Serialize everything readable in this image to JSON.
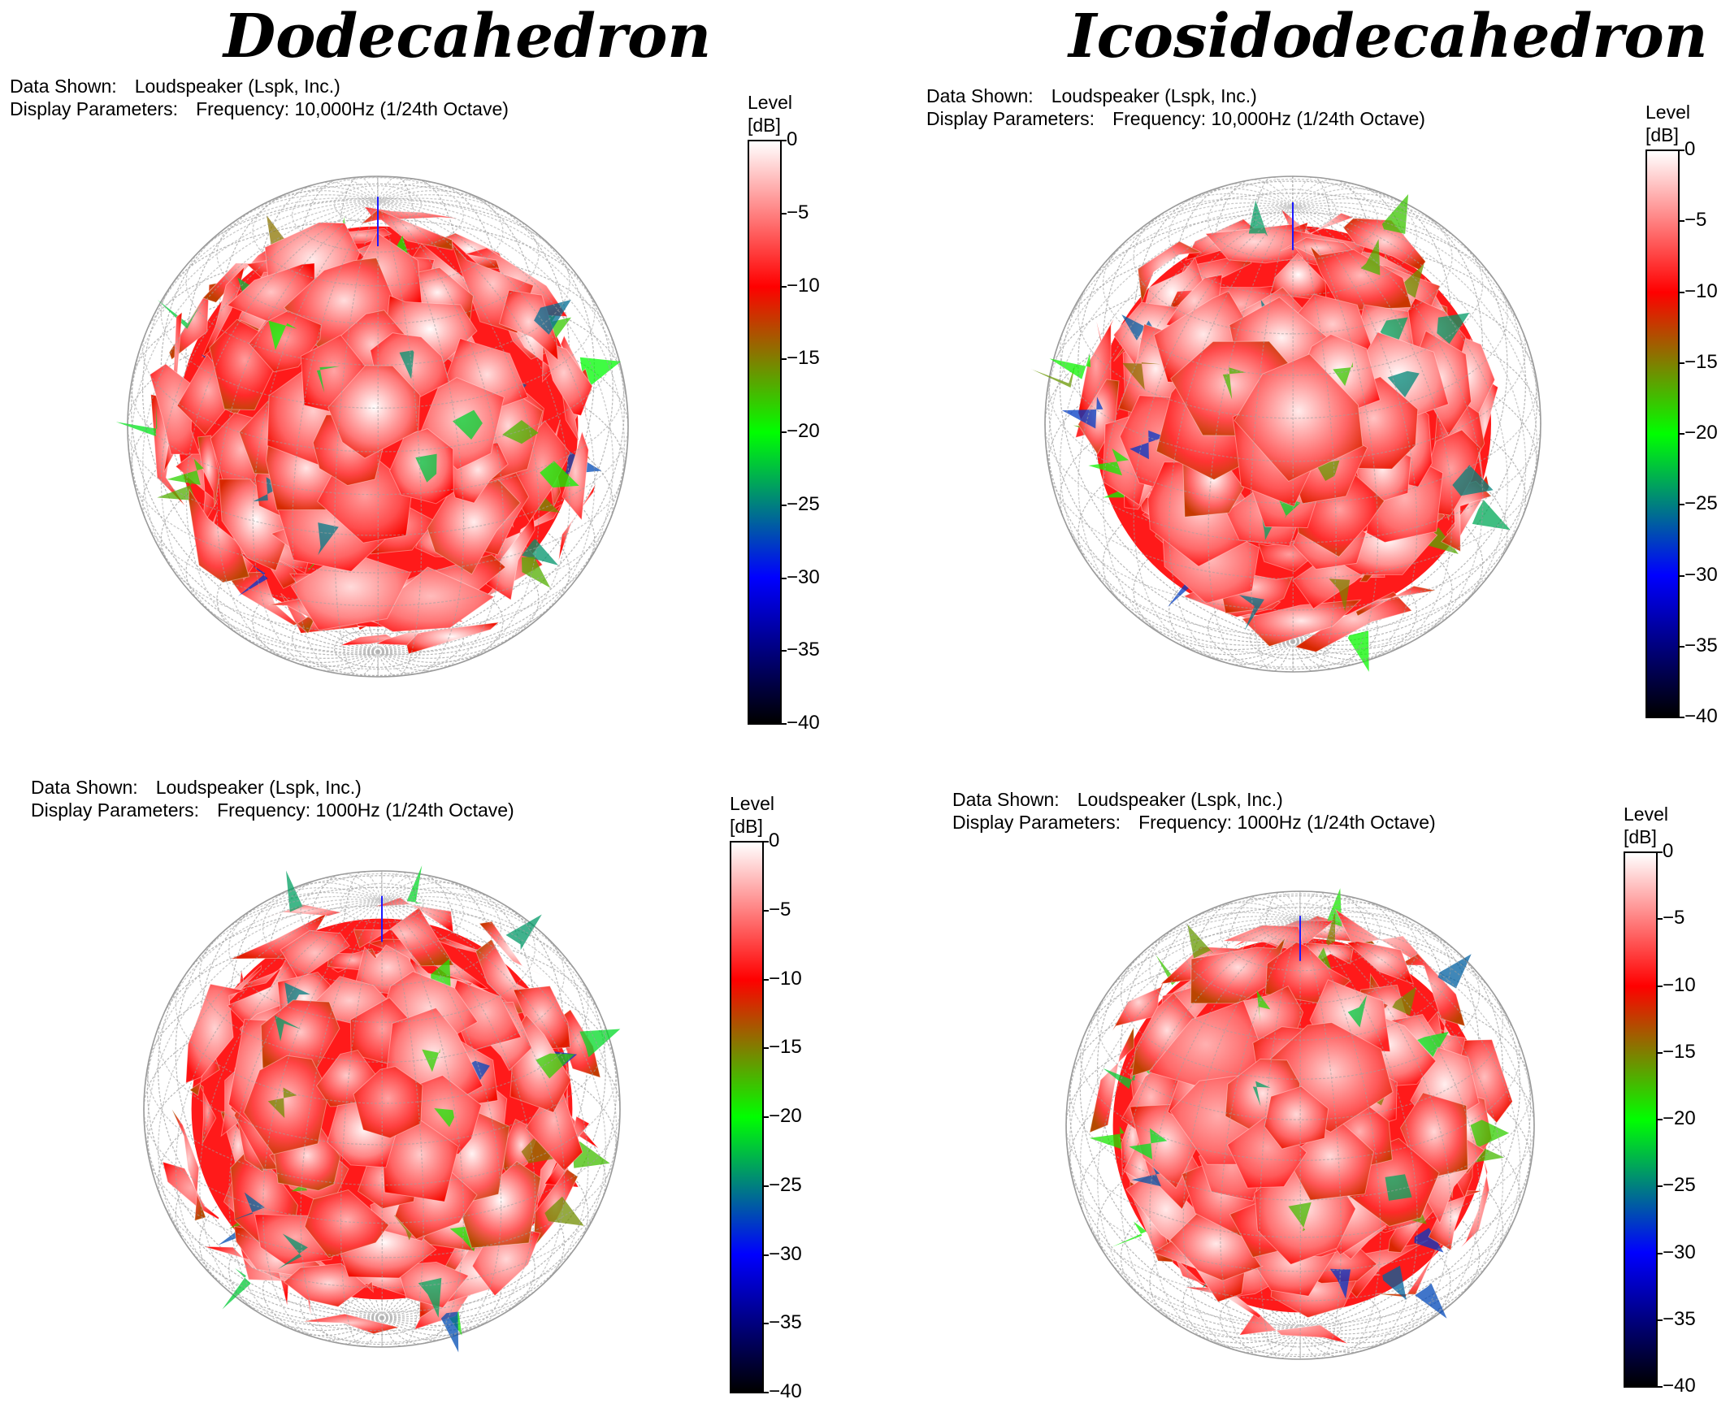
{
  "titles": {
    "left": "Dodecahedron",
    "right": "Icosidodecahedron"
  },
  "labels": {
    "data_shown": "Data Shown:",
    "display_parameters": "Display Parameters:"
  },
  "colorbar": {
    "title_line1": "Level",
    "title_line2": "[dB]",
    "ticks": [
      "0",
      "-5",
      "-10",
      "-15",
      "-20",
      "-25",
      "-30",
      "-35",
      "-40"
    ],
    "gradient": [
      {
        "level": 0,
        "color": "#ffffff"
      },
      {
        "level": -10,
        "color": "#ff0000"
      },
      {
        "level": -20,
        "color": "#00ff00"
      },
      {
        "level": -30,
        "color": "#0000ff"
      },
      {
        "level": -40,
        "color": "#000000"
      }
    ]
  },
  "panels": [
    {
      "id": "dodeca-10k",
      "data_shown": "Loudspeaker (Lspk, Inc.)",
      "display_parameters": "Frequency: 10,000Hz (1/24th Octave)"
    },
    {
      "id": "icosido-10k",
      "data_shown": "Loudspeaker (Lspk, Inc.)",
      "display_parameters": "Frequency: 10,000Hz (1/24th Octave)"
    },
    {
      "id": "dodeca-1k",
      "data_shown": "Loudspeaker (Lspk, Inc.)",
      "display_parameters": "Frequency: 1000Hz (1/24th Octave)"
    },
    {
      "id": "icosido-1k",
      "data_shown": "Loudspeaker (Lspk, Inc.)",
      "display_parameters": "Frequency: 1000Hz (1/24th Octave)"
    }
  ],
  "chart_data": [
    {
      "type": "heatmap",
      "title": "Dodecahedron",
      "subtitle": "Frequency: 10,000Hz (1/24th Octave)",
      "colorbar_label": "Level [dB]",
      "zlim": [
        -40,
        0
      ],
      "palette": [
        "white",
        "red",
        "green",
        "blue",
        "black"
      ]
    },
    {
      "type": "heatmap",
      "title": "Icosidodecahedron",
      "subtitle": "Frequency: 10,000Hz (1/24th Octave)",
      "colorbar_label": "Level [dB]",
      "zlim": [
        -40,
        0
      ],
      "palette": [
        "white",
        "red",
        "green",
        "blue",
        "black"
      ]
    },
    {
      "type": "heatmap",
      "title": "Dodecahedron",
      "subtitle": "Frequency: 1000Hz (1/24th Octave)",
      "colorbar_label": "Level [dB]",
      "zlim": [
        -40,
        0
      ],
      "palette": [
        "white",
        "red",
        "green",
        "blue",
        "black"
      ]
    },
    {
      "type": "heatmap",
      "title": "Icosidodecahedron",
      "subtitle": "Frequency: 1000Hz (1/24th Octave)",
      "colorbar_label": "Level [dB]",
      "zlim": [
        -40,
        0
      ],
      "palette": [
        "white",
        "red",
        "green",
        "blue",
        "black"
      ]
    }
  ]
}
